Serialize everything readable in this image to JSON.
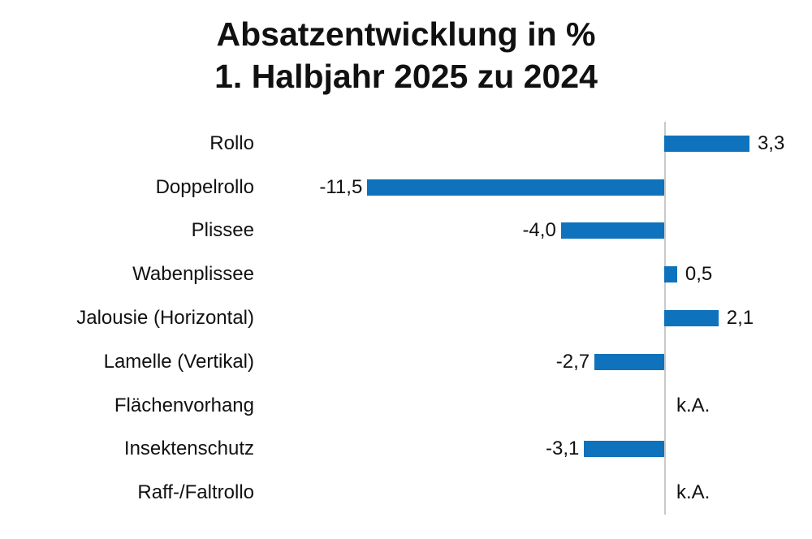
{
  "title": {
    "line1": "Absatzentwicklung in %",
    "line2": "1. Halbjahr 2025 zu 2024"
  },
  "chart_data": {
    "type": "bar",
    "orientation": "horizontal",
    "title": "Absatzentwicklung in % 1. Halbjahr 2025 zu 2024",
    "categories": [
      "Rollo",
      "Doppelrollo",
      "Plissee",
      "Wabenplissee",
      "Jalousie (Horizontal)",
      "Lamelle (Vertikal)",
      "Flächenvorhang",
      "Insektenschutz",
      "Raff-/Faltrollo"
    ],
    "values": [
      3.3,
      -11.5,
      -4.0,
      0.5,
      2.1,
      -2.7,
      null,
      -3.1,
      null
    ],
    "value_labels": [
      "3,3",
      "-11,5",
      "-4,0",
      "0,5",
      "2,1",
      "-2,7",
      "k.A.",
      "-3,1",
      "k.A."
    ],
    "no_data_label": "k.A.",
    "xlim": [
      -15.7,
      5.7
    ],
    "grid": false,
    "legend": false,
    "bar_color": "#0e72bc",
    "axis_color": "#c9c9c9"
  }
}
